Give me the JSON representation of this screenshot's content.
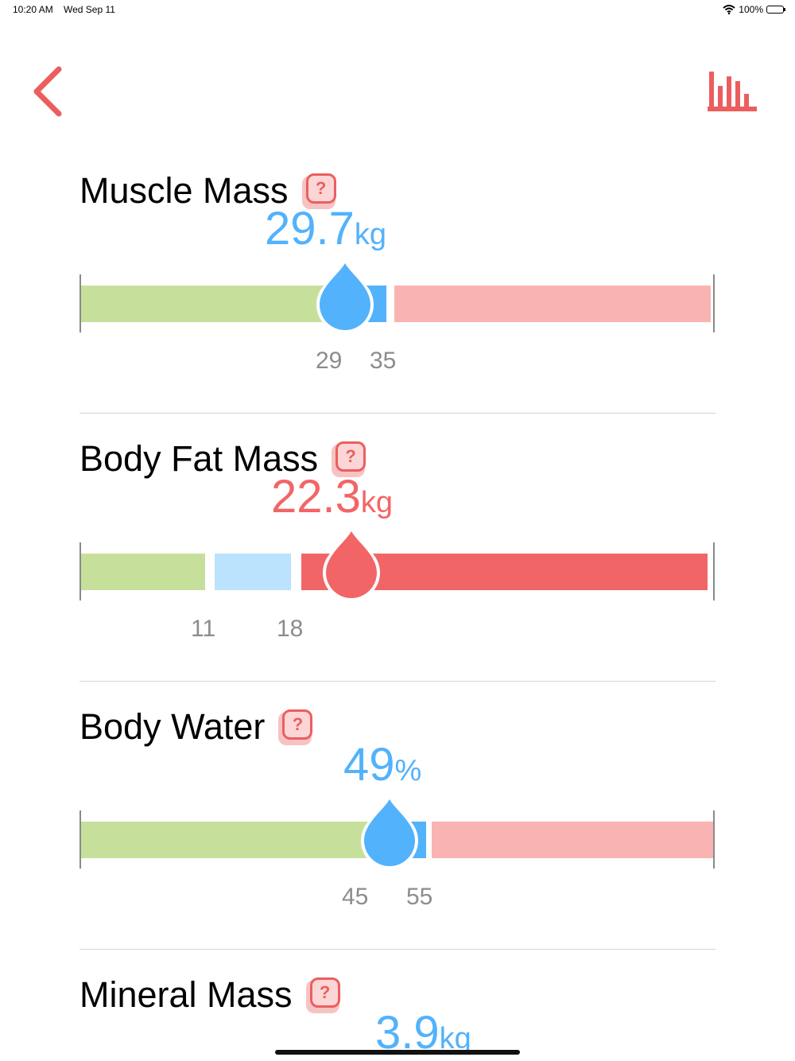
{
  "status_bar": {
    "time": "10:20 AM",
    "date": "Wed Sep 11",
    "battery": "100%"
  },
  "nav": {
    "back_icon": "chevron-left-icon",
    "chart_icon": "bar-chart-icon"
  },
  "colors": {
    "accent_red": "#ec5e5e",
    "blue": "#52b2fc",
    "green": "#c6e09b",
    "light_blue": "#bbe3fd",
    "pink": "#f9b3b2",
    "red": "#f26566"
  },
  "sections": [
    {
      "title": "Muscle Mass",
      "value": "29.7",
      "unit": "kg",
      "value_color": "#52b2fc",
      "low_label": "29",
      "high_label": "35"
    },
    {
      "title": "Body Fat Mass",
      "value": "22.3",
      "unit": "kg",
      "value_color": "#f26566",
      "low_label": "11",
      "high_label": "18"
    },
    {
      "title": "Body Water",
      "value": "49",
      "unit": "%",
      "value_color": "#52b2fc",
      "low_label": "45",
      "high_label": "55"
    },
    {
      "title": "Mineral Mass",
      "value": "3.9",
      "unit": "kg",
      "value_color": "#52b2fc"
    }
  ],
  "help_glyph": "?"
}
